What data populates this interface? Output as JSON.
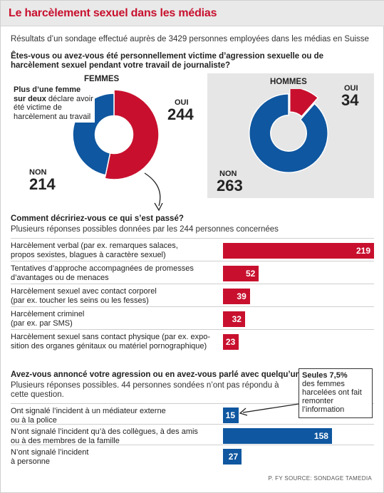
{
  "title": "Le harcèlement sexuel dans les médias",
  "subtitle": "Résultats d’un sondage effectué auprès de 3429 personnes employées dans les médias en Suisse",
  "colors": {
    "accent_red": "#c8102e",
    "accent_blue": "#0f57a0"
  },
  "section1": {
    "question": "Êtes-vous ou avez-vous été personnellement victime d’agression sexuelle ou de harcèlement sexuel pendant votre travail de journaliste?",
    "note_bold": "Plus d’une femme sur deux",
    "note_rest": " déclare avoir été victime de harcèlement au travail"
  },
  "section2": {
    "question": "Comment décririez-vous ce qui s’est passé?",
    "sub": "Plusieurs réponses possibles données par les 244 personnes concernées"
  },
  "section3": {
    "question": "Avez-vous annoncé votre agression ou en avez-vous parlé avec quelqu’un?",
    "sub": "Plusieurs réponses possibles. 44 personnes sondées n’ont pas répondu à cette question.",
    "callout_bold": "Seules 7,5%",
    "callout_rest": "des femmes harcelées ont fait remonter l’information"
  },
  "source": "P. FY SOURCE: SONDAGE TAMEDIA",
  "chart_data": [
    {
      "type": "pie",
      "title": "FEMMES",
      "categories": [
        "OUI",
        "NON"
      ],
      "values": [
        244,
        214
      ],
      "colors": [
        "#c8102e",
        "#0f57a0"
      ]
    },
    {
      "type": "pie",
      "title": "HOMMES",
      "categories": [
        "OUI",
        "NON"
      ],
      "values": [
        34,
        263
      ],
      "colors": [
        "#c8102e",
        "#0f57a0"
      ]
    },
    {
      "type": "bar",
      "orientation": "horizontal",
      "categories": [
        "Harcèlement verbal (par ex. remarques salaces, propos sexistes, blagues à caractère sexuel)",
        "Tentatives d’approche accompagnées de promesses d’avantages ou de menaces",
        "Harcèlement sexuel avec contact corporel (par ex. toucher les seins ou les fesses)",
        "Harcèlement criminel (par ex. par SMS)",
        "Harcèlement sexuel sans contact physique (par ex. exposition des organes génitaux ou matériel pornographique)"
      ],
      "label_lines": [
        [
          "Harcèlement verbal (par ex. remarques salaces,",
          "propos sexistes, blagues à caractère sexuel)"
        ],
        [
          "Tentatives d’approche accompagnées de promesses",
          "d’avantages ou de menaces"
        ],
        [
          "Harcèlement sexuel avec contact corporel",
          "(par ex. toucher les seins ou les fesses)"
        ],
        [
          "Harcèlement criminel",
          "(par ex. par SMS)"
        ],
        [
          "Harcèlement sexuel sans contact physique (par ex. expo-",
          "sition des organes génitaux ou matériel pornographique)"
        ]
      ],
      "values": [
        219,
        52,
        39,
        32,
        23
      ],
      "color": "#c8102e"
    },
    {
      "type": "bar",
      "orientation": "horizontal",
      "categories": [
        "Ont signalé l’incident à un médiateur externe ou à la police",
        "N’ont signalé l’incident qu’à des collègues, à des amis ou à des membres de la famille",
        "N’ont signalé l’incident à personne"
      ],
      "label_lines": [
        [
          "Ont signalé l’incident à un médiateur externe",
          "ou à la police"
        ],
        [
          "N’ont signalé l’incident qu’à des collègues, à des amis",
          "ou à des membres de la famille"
        ],
        [
          "N’ont signalé l’incident",
          "à personne"
        ]
      ],
      "values": [
        15,
        158,
        27
      ],
      "color": "#0f57a0"
    }
  ]
}
